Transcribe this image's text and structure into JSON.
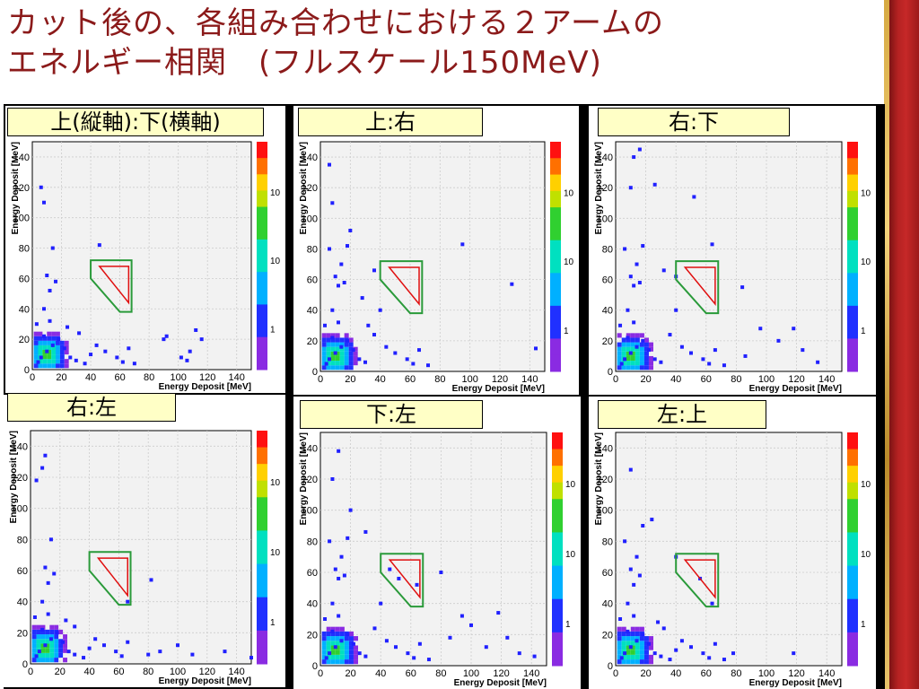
{
  "title": {
    "line1": "カット後の、各組み合わせにおける２アームの",
    "line2": "エネルギー相関　(フルスケール150MeV)"
  },
  "colors": {
    "title": "#8b1a1a",
    "label_bg": "#ffffc6",
    "cut_outer": "#2a9a3a",
    "cut_inner": "#e01010",
    "marker": "#2020ff",
    "frame": "#000000",
    "side_bar": "#c62828",
    "side_gold": "#e7c36a"
  },
  "common_axes": {
    "xlabel": "Energy Deposit [MeV]",
    "ylabel": "Energy Deposit [MeV]",
    "x_ticks": [
      0,
      20,
      40,
      60,
      80,
      100,
      120,
      140
    ],
    "y_ticks": [
      0,
      20,
      40,
      60,
      80,
      100,
      120,
      140
    ],
    "colorbar_ticks": [
      "1",
      "10",
      "10"
    ]
  },
  "chart_data": [
    {
      "type": "heatmap",
      "label": "上(縦軸):下(横軸)",
      "xlabel": "Energy Deposit [MeV]",
      "ylabel": "Energy Deposit [MeV]",
      "xlim": [
        0,
        150
      ],
      "ylim": [
        0,
        150
      ],
      "points": [
        [
          6,
          8
        ],
        [
          10,
          12
        ],
        [
          4,
          5
        ],
        [
          14,
          16
        ],
        [
          8,
          22
        ],
        [
          3,
          30
        ],
        [
          12,
          32
        ],
        [
          18,
          20
        ],
        [
          22,
          14
        ],
        [
          26,
          8
        ],
        [
          30,
          6
        ],
        [
          36,
          4
        ],
        [
          40,
          10
        ],
        [
          44,
          16
        ],
        [
          50,
          12
        ],
        [
          58,
          8
        ],
        [
          62,
          5
        ],
        [
          66,
          14
        ],
        [
          90,
          20
        ],
        [
          92,
          22
        ],
        [
          102,
          8
        ],
        [
          108,
          12
        ],
        [
          112,
          26
        ],
        [
          116,
          20
        ],
        [
          106,
          6
        ],
        [
          70,
          4
        ],
        [
          8,
          40
        ],
        [
          12,
          52
        ],
        [
          16,
          58
        ],
        [
          10,
          62
        ],
        [
          14,
          80
        ],
        [
          8,
          110
        ],
        [
          6,
          120
        ],
        [
          46,
          82
        ],
        [
          32,
          24
        ],
        [
          24,
          28
        ]
      ]
    },
    {
      "type": "heatmap",
      "label": "上:右",
      "xlabel": "Energy Deposit [MeV]",
      "ylabel": "Energy Deposit [MeV]",
      "xlim": [
        0,
        150
      ],
      "ylim": [
        0,
        150
      ],
      "points": [
        [
          6,
          8
        ],
        [
          10,
          12
        ],
        [
          4,
          5
        ],
        [
          14,
          16
        ],
        [
          8,
          22
        ],
        [
          3,
          30
        ],
        [
          12,
          32
        ],
        [
          18,
          20
        ],
        [
          22,
          14
        ],
        [
          26,
          8
        ],
        [
          30,
          6
        ],
        [
          36,
          24
        ],
        [
          40,
          40
        ],
        [
          44,
          16
        ],
        [
          50,
          12
        ],
        [
          58,
          8
        ],
        [
          62,
          5
        ],
        [
          66,
          14
        ],
        [
          72,
          4
        ],
        [
          8,
          40
        ],
        [
          12,
          56
        ],
        [
          16,
          58
        ],
        [
          10,
          62
        ],
        [
          14,
          70
        ],
        [
          6,
          80
        ],
        [
          18,
          82
        ],
        [
          8,
          110
        ],
        [
          6,
          135
        ],
        [
          20,
          92
        ],
        [
          36,
          66
        ],
        [
          95,
          83
        ],
        [
          128,
          57
        ],
        [
          144,
          15
        ],
        [
          28,
          48
        ],
        [
          32,
          30
        ]
      ]
    },
    {
      "type": "heatmap",
      "label": "右:下",
      "xlabel": "Energy Deposit [MeV]",
      "ylabel": "Energy Deposit [MeV]",
      "xlim": [
        0,
        150
      ],
      "ylim": [
        0,
        150
      ],
      "points": [
        [
          6,
          8
        ],
        [
          10,
          12
        ],
        [
          4,
          5
        ],
        [
          14,
          16
        ],
        [
          8,
          22
        ],
        [
          3,
          30
        ],
        [
          12,
          32
        ],
        [
          18,
          20
        ],
        [
          22,
          14
        ],
        [
          26,
          8
        ],
        [
          30,
          6
        ],
        [
          36,
          24
        ],
        [
          40,
          40
        ],
        [
          44,
          16
        ],
        [
          50,
          12
        ],
        [
          58,
          8
        ],
        [
          62,
          5
        ],
        [
          66,
          14
        ],
        [
          72,
          4
        ],
        [
          8,
          40
        ],
        [
          12,
          56
        ],
        [
          16,
          58
        ],
        [
          10,
          62
        ],
        [
          14,
          70
        ],
        [
          6,
          80
        ],
        [
          18,
          82
        ],
        [
          10,
          120
        ],
        [
          12,
          140
        ],
        [
          16,
          145
        ],
        [
          26,
          122
        ],
        [
          52,
          114
        ],
        [
          64,
          83
        ],
        [
          84,
          55
        ],
        [
          96,
          28
        ],
        [
          118,
          28
        ],
        [
          124,
          14
        ],
        [
          134,
          6
        ],
        [
          108,
          20
        ],
        [
          86,
          10
        ],
        [
          32,
          66
        ],
        [
          40,
          62
        ]
      ]
    },
    {
      "type": "heatmap",
      "label": "右:左",
      "xlabel": "Energy Deposit [MeV]",
      "ylabel": "Energy Deposit [MeV]",
      "xlim": [
        0,
        150
      ],
      "ylim": [
        0,
        150
      ],
      "points": [
        [
          6,
          8
        ],
        [
          10,
          12
        ],
        [
          4,
          5
        ],
        [
          14,
          16
        ],
        [
          8,
          22
        ],
        [
          3,
          30
        ],
        [
          12,
          32
        ],
        [
          18,
          20
        ],
        [
          22,
          14
        ],
        [
          26,
          8
        ],
        [
          30,
          6
        ],
        [
          36,
          4
        ],
        [
          40,
          10
        ],
        [
          44,
          16
        ],
        [
          50,
          12
        ],
        [
          58,
          8
        ],
        [
          62,
          5
        ],
        [
          66,
          14
        ],
        [
          80,
          6
        ],
        [
          88,
          8
        ],
        [
          100,
          12
        ],
        [
          110,
          6
        ],
        [
          132,
          8
        ],
        [
          150,
          4
        ],
        [
          8,
          40
        ],
        [
          12,
          52
        ],
        [
          16,
          58
        ],
        [
          10,
          62
        ],
        [
          14,
          80
        ],
        [
          8,
          126
        ],
        [
          10,
          134
        ],
        [
          4,
          118
        ],
        [
          82,
          54
        ],
        [
          66,
          40
        ],
        [
          24,
          28
        ],
        [
          30,
          24
        ]
      ]
    },
    {
      "type": "heatmap",
      "label": "下:左",
      "xlabel": "Energy Deposit [MeV]",
      "ylabel": "Energy Deposit [MeV]",
      "xlim": [
        0,
        150
      ],
      "ylim": [
        0,
        150
      ],
      "points": [
        [
          6,
          8
        ],
        [
          10,
          12
        ],
        [
          4,
          5
        ],
        [
          14,
          16
        ],
        [
          8,
          22
        ],
        [
          3,
          30
        ],
        [
          12,
          32
        ],
        [
          18,
          20
        ],
        [
          22,
          14
        ],
        [
          26,
          8
        ],
        [
          30,
          6
        ],
        [
          36,
          24
        ],
        [
          40,
          40
        ],
        [
          44,
          16
        ],
        [
          50,
          12
        ],
        [
          58,
          8
        ],
        [
          62,
          5
        ],
        [
          66,
          14
        ],
        [
          72,
          4
        ],
        [
          8,
          40
        ],
        [
          12,
          56
        ],
        [
          16,
          58
        ],
        [
          10,
          62
        ],
        [
          14,
          70
        ],
        [
          6,
          80
        ],
        [
          18,
          82
        ],
        [
          8,
          120
        ],
        [
          12,
          138
        ],
        [
          20,
          100
        ],
        [
          30,
          86
        ],
        [
          46,
          62
        ],
        [
          52,
          56
        ],
        [
          64,
          52
        ],
        [
          80,
          60
        ],
        [
          94,
          32
        ],
        [
          110,
          12
        ],
        [
          124,
          18
        ],
        [
          132,
          8
        ],
        [
          142,
          6
        ],
        [
          86,
          18
        ],
        [
          100,
          26
        ],
        [
          118,
          34
        ]
      ]
    },
    {
      "type": "heatmap",
      "label": "左:上",
      "xlabel": "Energy Deposit [MeV]",
      "ylabel": "Energy Deposit [MeV]",
      "xlim": [
        0,
        150
      ],
      "ylim": [
        0,
        150
      ],
      "points": [
        [
          6,
          8
        ],
        [
          10,
          12
        ],
        [
          4,
          5
        ],
        [
          14,
          16
        ],
        [
          8,
          22
        ],
        [
          3,
          30
        ],
        [
          12,
          32
        ],
        [
          18,
          20
        ],
        [
          22,
          14
        ],
        [
          26,
          8
        ],
        [
          30,
          6
        ],
        [
          36,
          4
        ],
        [
          40,
          10
        ],
        [
          44,
          16
        ],
        [
          50,
          12
        ],
        [
          58,
          8
        ],
        [
          62,
          5
        ],
        [
          66,
          14
        ],
        [
          72,
          4
        ],
        [
          8,
          40
        ],
        [
          12,
          52
        ],
        [
          16,
          58
        ],
        [
          10,
          62
        ],
        [
          14,
          70
        ],
        [
          6,
          80
        ],
        [
          18,
          90
        ],
        [
          10,
          126
        ],
        [
          24,
          94
        ],
        [
          40,
          70
        ],
        [
          56,
          56
        ],
        [
          64,
          40
        ],
        [
          78,
          8
        ],
        [
          118,
          8
        ],
        [
          28,
          28
        ],
        [
          32,
          24
        ]
      ]
    }
  ]
}
